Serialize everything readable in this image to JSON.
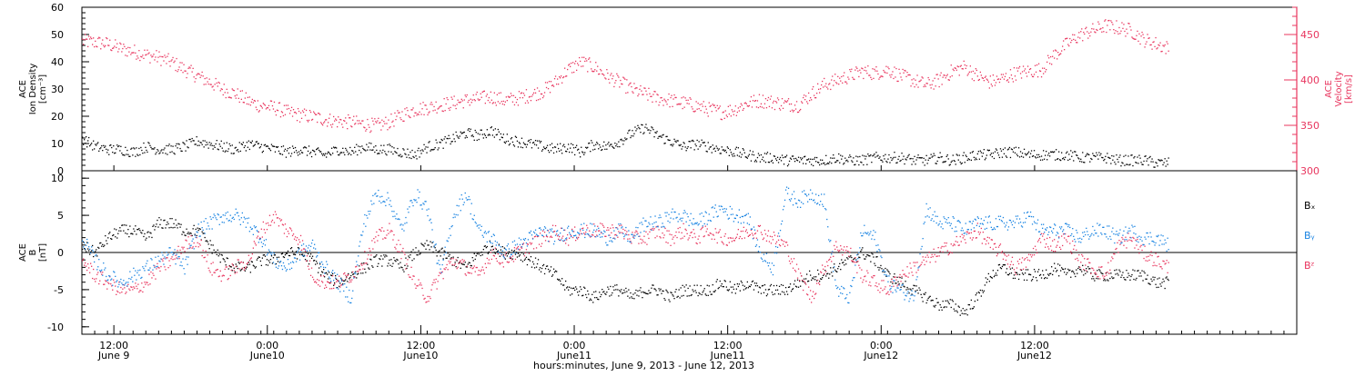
{
  "chart_data": [
    {
      "type": "scatter",
      "panel": "top",
      "ylabel_lines": [
        "ACE",
        "Ion Density",
        "[cm⁻³]"
      ],
      "y2label_lines": [
        "ACE",
        "Velocity",
        "[km/s]"
      ],
      "ylim": [
        0,
        60
      ],
      "y2lim": [
        300,
        480
      ],
      "yticks": [
        0,
        10,
        20,
        30,
        40,
        50,
        60
      ],
      "y2ticks": [
        300,
        350,
        400,
        450
      ],
      "colors": {
        "density": "#000000",
        "velocity": "#e8355e"
      },
      "series": [
        {
          "key": "density",
          "axis": "left",
          "x": [
            0,
            1,
            2,
            3,
            4,
            5,
            6,
            7,
            8,
            9,
            10,
            11,
            12,
            13,
            14,
            15,
            16,
            17,
            18,
            19,
            20,
            21,
            22,
            23,
            24,
            25,
            26,
            27,
            28,
            29,
            30,
            31,
            32,
            33,
            34,
            35,
            36,
            37,
            38,
            39,
            40,
            41,
            42,
            43,
            44,
            45,
            46,
            47,
            48,
            49,
            50,
            51,
            52,
            53,
            54,
            55,
            56,
            57,
            58,
            59,
            60,
            61,
            62,
            63,
            64,
            65,
            66,
            67,
            68,
            69,
            70,
            71,
            72,
            73,
            74,
            75,
            76,
            77,
            78,
            79,
            80,
            81,
            82,
            83,
            84,
            85
          ],
          "y": [
            12,
            9,
            8,
            8,
            7,
            9,
            8,
            8,
            9,
            11,
            10,
            9,
            8,
            10,
            9,
            8,
            7,
            8,
            7,
            6,
            8,
            7,
            9,
            8,
            8,
            7,
            6,
            9,
            10,
            12,
            14,
            13,
            15,
            12,
            11,
            10,
            9,
            8,
            9,
            7,
            10,
            9,
            11,
            14,
            16,
            13,
            11,
            9,
            10,
            9,
            8,
            7,
            6,
            5,
            5,
            4,
            4,
            4,
            4,
            5,
            4,
            4,
            5,
            5,
            5,
            4,
            4,
            5,
            4,
            5,
            6,
            6,
            7,
            7,
            6,
            6,
            6,
            6,
            5,
            5,
            5,
            4,
            4,
            4,
            3,
            3
          ]
        },
        {
          "key": "velocity",
          "axis": "right",
          "x": [
            0,
            1,
            2,
            3,
            4,
            5,
            6,
            7,
            8,
            9,
            10,
            11,
            12,
            13,
            14,
            15,
            16,
            17,
            18,
            19,
            20,
            21,
            22,
            23,
            24,
            25,
            26,
            27,
            28,
            29,
            30,
            31,
            32,
            33,
            34,
            35,
            36,
            37,
            38,
            39,
            40,
            41,
            42,
            43,
            44,
            45,
            46,
            47,
            48,
            49,
            50,
            51,
            52,
            53,
            54,
            55,
            56,
            57,
            58,
            59,
            60,
            61,
            62,
            63,
            64,
            65,
            66,
            67,
            68,
            69,
            70,
            71,
            72,
            73,
            74,
            75,
            76,
            77,
            78,
            79,
            80,
            81,
            82,
            83,
            84,
            85
          ],
          "y": [
            443,
            442,
            440,
            435,
            432,
            428,
            425,
            420,
            412,
            405,
            398,
            390,
            385,
            377,
            372,
            370,
            365,
            362,
            360,
            357,
            355,
            354,
            352,
            350,
            354,
            362,
            368,
            370,
            373,
            375,
            378,
            380,
            382,
            378,
            380,
            384,
            388,
            398,
            412,
            420,
            415,
            405,
            398,
            390,
            385,
            380,
            378,
            375,
            372,
            368,
            365,
            368,
            375,
            378,
            376,
            374,
            373,
            385,
            395,
            400,
            405,
            410,
            408,
            412,
            405,
            400,
            395,
            400,
            410,
            415,
            405,
            398,
            402,
            408,
            410,
            412,
            428,
            440,
            450,
            455,
            460,
            458,
            455,
            445,
            440,
            435
          ]
        }
      ]
    },
    {
      "type": "scatter",
      "panel": "bottom",
      "ylabel_lines": [
        "ACE",
        "B",
        "[nT]"
      ],
      "ylim": [
        -11,
        11
      ],
      "yticks": [
        -10,
        -5,
        0,
        5,
        10
      ],
      "zero_line": true,
      "legend": [
        "Bₓ",
        "Bᵧ",
        "Bᶻ"
      ],
      "colors": {
        "bx": "#000000",
        "by": "#1a84e2",
        "bz": "#e8355e"
      },
      "series": [
        {
          "key": "bx",
          "x": [
            0,
            1,
            2,
            3,
            4,
            5,
            6,
            7,
            8,
            9,
            10,
            11,
            12,
            13,
            14,
            15,
            16,
            17,
            18,
            19,
            20,
            21,
            22,
            23,
            24,
            25,
            26,
            27,
            28,
            29,
            30,
            31,
            32,
            33,
            34,
            35,
            36,
            37,
            38,
            39,
            40,
            41,
            42,
            43,
            44,
            45,
            46,
            47,
            48,
            49,
            50,
            51,
            52,
            53,
            54,
            55,
            56,
            57,
            58,
            59,
            60,
            61,
            62,
            63,
            64,
            65,
            66,
            67,
            68,
            69,
            70,
            71,
            72,
            73,
            74,
            75,
            76,
            77,
            78,
            79,
            80,
            81,
            82,
            83,
            84,
            85
          ],
          "y": [
            1,
            0,
            2,
            3,
            3,
            2,
            4,
            4,
            3,
            3,
            1,
            -1,
            -2,
            -2,
            -1,
            -1,
            0,
            0,
            -1,
            -3,
            -4,
            -3,
            -2,
            -1,
            -1,
            -2,
            0,
            1,
            0,
            -1,
            -2,
            0,
            1,
            0,
            0,
            -1,
            -2,
            -3,
            -5,
            -5,
            -6,
            -5,
            -5,
            -6,
            -5,
            -5,
            -6,
            -5,
            -5,
            -5,
            -4,
            -5,
            -4,
            -5,
            -5,
            -5,
            -4,
            -3,
            -3,
            -2,
            -1,
            0,
            -1,
            -3,
            -4,
            -5,
            -6,
            -7,
            -7,
            -8,
            -6,
            -3,
            -2,
            -3,
            -3,
            -3,
            -2,
            -3,
            -2,
            -3,
            -3,
            -3,
            -3,
            -3,
            -4,
            -4
          ]
        },
        {
          "key": "by",
          "x": [
            0,
            1,
            2,
            3,
            4,
            5,
            6,
            7,
            8,
            9,
            10,
            11,
            12,
            13,
            14,
            15,
            16,
            17,
            18,
            19,
            20,
            21,
            22,
            23,
            24,
            25,
            26,
            27,
            28,
            29,
            30,
            31,
            32,
            33,
            34,
            35,
            36,
            37,
            38,
            39,
            40,
            41,
            42,
            43,
            44,
            45,
            46,
            47,
            48,
            49,
            50,
            51,
            52,
            53,
            54,
            55,
            56,
            57,
            58,
            59,
            60,
            61,
            62,
            63,
            64,
            65,
            66,
            67,
            68,
            69,
            70,
            71,
            72,
            73,
            74,
            75,
            76,
            77,
            78,
            79,
            80,
            81,
            82,
            83,
            84,
            85
          ],
          "y": [
            2,
            -1,
            -3,
            -4,
            -3,
            -2,
            -1,
            0,
            -2,
            3,
            4,
            5,
            5,
            4,
            2,
            -1,
            -2,
            0,
            1,
            -2,
            -4,
            -6,
            4,
            8,
            7,
            3,
            8,
            6,
            -3,
            5,
            8,
            3,
            2,
            0,
            1,
            2,
            3,
            2,
            3,
            3,
            3,
            2,
            3,
            2,
            4,
            4,
            5,
            5,
            4,
            5,
            6,
            5,
            5,
            0,
            -2,
            8,
            7,
            8,
            7,
            -5,
            -6,
            3,
            2,
            -4,
            -5,
            -6,
            6,
            4,
            4,
            3,
            4,
            4,
            4,
            4,
            5,
            3,
            3,
            3,
            2,
            3,
            3,
            2,
            3,
            2,
            2,
            1
          ]
        },
        {
          "key": "bz",
          "x": [
            0,
            1,
            2,
            3,
            4,
            5,
            6,
            7,
            8,
            9,
            10,
            11,
            12,
            13,
            14,
            15,
            16,
            17,
            18,
            19,
            20,
            21,
            22,
            23,
            24,
            25,
            26,
            27,
            28,
            29,
            30,
            31,
            32,
            33,
            34,
            35,
            36,
            37,
            38,
            39,
            40,
            41,
            42,
            43,
            44,
            45,
            46,
            47,
            48,
            49,
            50,
            51,
            52,
            53,
            54,
            55,
            56,
            57,
            58,
            59,
            60,
            61,
            62,
            63,
            64,
            65,
            66,
            67,
            68,
            69,
            70,
            71,
            72,
            73,
            74,
            75,
            76,
            77,
            78,
            79,
            80,
            81,
            82,
            83,
            84,
            85
          ],
          "y": [
            -1,
            -3,
            -4,
            -5,
            -5,
            -4,
            -2,
            -1,
            1,
            2,
            -2,
            -3,
            -2,
            -1,
            3,
            5,
            3,
            2,
            -3,
            -4,
            -4,
            -3,
            -1,
            2,
            3,
            0,
            -4,
            -6,
            -3,
            -1,
            -2,
            -3,
            0,
            -1,
            0,
            1,
            2,
            3,
            2,
            3,
            3,
            3,
            3,
            2,
            2,
            3,
            2,
            3,
            2,
            3,
            2,
            2,
            3,
            3,
            2,
            1,
            -3,
            -6,
            -2,
            1,
            0,
            -3,
            -4,
            -5,
            -3,
            -2,
            -1,
            0,
            1,
            2,
            3,
            1,
            0,
            -2,
            -1,
            2,
            1,
            2,
            -1,
            -2,
            -3,
            1,
            2,
            0,
            -1,
            -2
          ]
        }
      ]
    },
    {
      "type": "time_axis",
      "x_range": [
        0,
        95
      ],
      "x_unit": "hours since the first tick label minus 11.5",
      "ticks": [
        {
          "x": 2.5,
          "time": "12:00",
          "date": "June  9"
        },
        {
          "x": 14.5,
          "time": "0:00",
          "date": "June10"
        },
        {
          "x": 26.5,
          "time": "12:00",
          "date": "June10"
        },
        {
          "x": 38.5,
          "time": "0:00",
          "date": "June11"
        },
        {
          "x": 50.5,
          "time": "12:00",
          "date": "June11"
        },
        {
          "x": 62.5,
          "time": "0:00",
          "date": "June12"
        },
        {
          "x": 74.5,
          "time": "12:00",
          "date": "June12"
        }
      ],
      "xlabel": "hours:minutes, June  9, 2013 - June 12, 2013"
    }
  ]
}
